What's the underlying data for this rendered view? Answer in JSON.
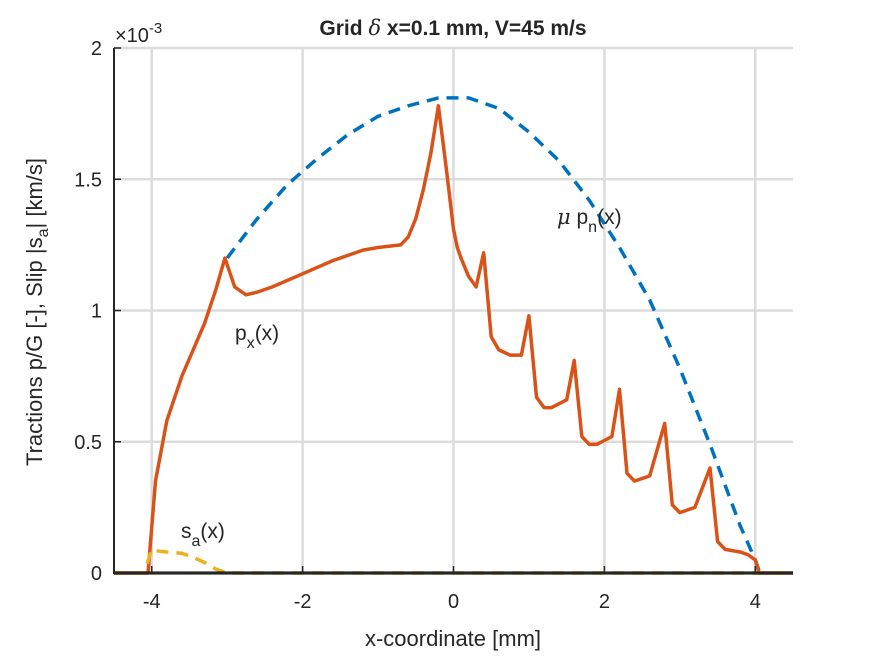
{
  "chart_data": {
    "type": "line",
    "title": {
      "pre": "Grid ",
      "symbol": "δ",
      "post": " x=0.1 mm, V=45 m/s"
    },
    "xlabel": "x-coordinate [mm]",
    "ylabel": {
      "main": "Tractions p/G [-], Slip |s",
      "sub": "a",
      "tail": "| [km/s]"
    },
    "y_exponent": {
      "prefix": "×10",
      "power": "-3"
    },
    "xlim": [
      -4.5,
      4.5
    ],
    "ylim": [
      0,
      0.002
    ],
    "x_ticks": [
      -4,
      -2,
      0,
      2,
      4
    ],
    "x_tick_labels": [
      "-4",
      "-2",
      "0",
      "2",
      "4"
    ],
    "y_ticks": [
      0,
      0.0005,
      0.001,
      0.0015,
      0.002
    ],
    "y_tick_labels": [
      "0",
      "0.5",
      "1",
      "1.5",
      "2"
    ],
    "grid": true,
    "series": [
      {
        "key": "mu_pn",
        "style": "dashed",
        "color": "#0072BD",
        "label": {
          "symbol": "μ",
          "main": " p",
          "sub": "n",
          "tail": "(x)"
        },
        "x": [
          -3.0,
          -2.6,
          -2.2,
          -1.8,
          -1.4,
          -1.0,
          -0.6,
          -0.2,
          0.0,
          0.2,
          0.6,
          1.0,
          1.4,
          1.8,
          2.2,
          2.6,
          3.0,
          3.4,
          3.8,
          4.0,
          4.06
        ],
        "y": [
          0.0012,
          0.00135,
          0.00148,
          0.00158,
          0.00167,
          0.00174,
          0.00178,
          0.00181,
          0.00181,
          0.00181,
          0.00177,
          0.00168,
          0.00157,
          0.00142,
          0.00124,
          0.00104,
          0.00078,
          0.00049,
          0.00018,
          5e-05,
          0.0
        ]
      },
      {
        "key": "px",
        "style": "solid",
        "color": "#D95319",
        "label": {
          "symbol": "",
          "main": "p",
          "sub": "x",
          "tail": "(x)"
        },
        "x": [
          -4.5,
          -4.05,
          -3.95,
          -3.8,
          -3.6,
          -3.3,
          -3.15,
          -3.03,
          -2.9,
          -2.75,
          -2.6,
          -2.4,
          -2.0,
          -1.6,
          -1.2,
          -1.0,
          -0.7,
          -0.6,
          -0.5,
          -0.4,
          -0.3,
          -0.2,
          -0.1,
          0.0,
          0.05,
          0.1,
          0.2,
          0.3,
          0.4,
          0.5,
          0.6,
          0.75,
          0.9,
          1.0,
          1.1,
          1.2,
          1.3,
          1.5,
          1.6,
          1.7,
          1.8,
          1.9,
          2.1,
          2.2,
          2.3,
          2.4,
          2.6,
          2.8,
          2.9,
          3.0,
          3.2,
          3.4,
          3.5,
          3.6,
          3.8,
          3.9,
          4.0,
          4.05,
          4.1,
          4.5
        ],
        "y": [
          0.0,
          0.0,
          0.00035,
          0.00058,
          0.00075,
          0.00095,
          0.00108,
          0.0012,
          0.00109,
          0.00106,
          0.00107,
          0.00109,
          0.00114,
          0.00119,
          0.00123,
          0.00124,
          0.00125,
          0.00128,
          0.00135,
          0.00146,
          0.0016,
          0.00178,
          0.00155,
          0.00131,
          0.00124,
          0.0012,
          0.00113,
          0.00109,
          0.00122,
          0.0009,
          0.00085,
          0.00083,
          0.00083,
          0.00098,
          0.00067,
          0.00063,
          0.00063,
          0.00066,
          0.00081,
          0.00052,
          0.00049,
          0.00049,
          0.00052,
          0.0007,
          0.00038,
          0.00035,
          0.00037,
          0.00057,
          0.00026,
          0.00023,
          0.00025,
          0.0004,
          0.00012,
          9e-05,
          8e-05,
          7e-05,
          5e-05,
          0.0,
          0.0,
          0.0
        ]
      },
      {
        "key": "sa",
        "style": "dashed",
        "color": "#EDB120",
        "label": {
          "symbol": "",
          "main": "s",
          "sub": "a",
          "tail": "(x)"
        },
        "x": [
          -4.5,
          -4.1,
          -4.0,
          -3.95,
          -3.8,
          -3.6,
          -3.45,
          -3.3,
          -3.15,
          -3.0,
          -2.9,
          4.5
        ],
        "y": [
          0.0,
          0.0,
          9e-05,
          8.5e-05,
          8e-05,
          7.5e-05,
          6e-05,
          4e-05,
          1.5e-05,
          0.0,
          0.0,
          0.0
        ]
      },
      {
        "key": "zero_line",
        "style": "solid",
        "color": "#000000",
        "label": null,
        "x": [
          -4.5,
          -4.05,
          -4.0,
          4.0,
          4.05,
          4.5
        ],
        "y": [
          0.0,
          0.0,
          0.0,
          0.0,
          0.0,
          0.0
        ]
      }
    ]
  }
}
